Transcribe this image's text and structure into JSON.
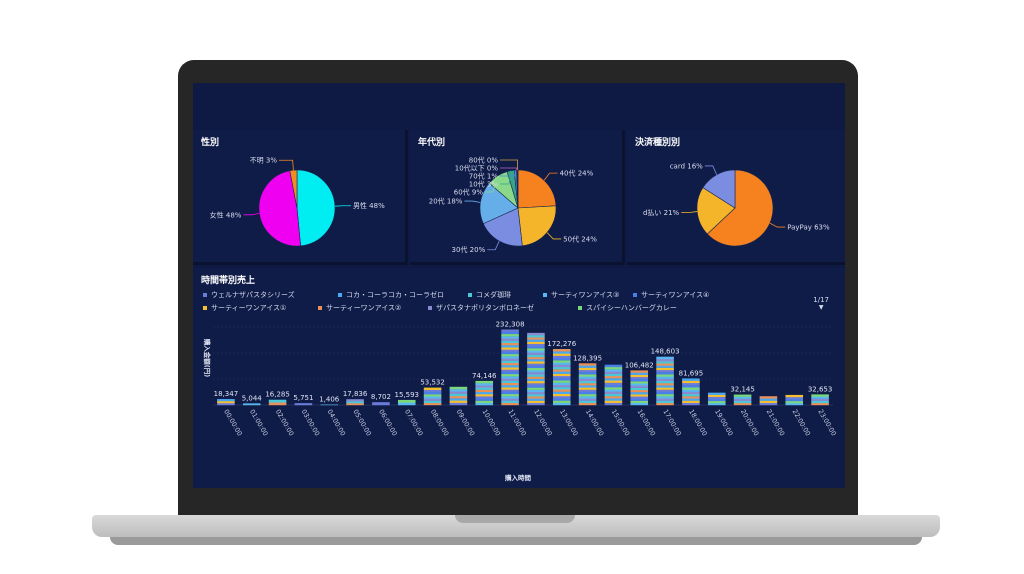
{
  "panels": {
    "gender": {
      "title": "性別",
      "chart": {
        "type": "pie",
        "slices": [
          {
            "label": "男性 48%",
            "name": "男性",
            "value": 48,
            "color": "#00eef2"
          },
          {
            "label": "女性 48%",
            "name": "女性",
            "value": 48,
            "color": "#f000f0"
          },
          {
            "label": "不明 3%",
            "name": "不明",
            "value": 3,
            "color": "#f58a1f"
          }
        ]
      }
    },
    "age": {
      "title": "年代別",
      "chart": {
        "type": "pie",
        "slices": [
          {
            "label": "40代 24%",
            "name": "40代",
            "value": 24,
            "color": "#f5821f"
          },
          {
            "label": "50代 24%",
            "name": "50代",
            "value": 24,
            "color": "#f5b52a"
          },
          {
            "label": "30代 20%",
            "name": "30代",
            "value": 20,
            "color": "#7b8de0"
          },
          {
            "label": "20代 18%",
            "name": "20代",
            "value": 18,
            "color": "#66aeea"
          },
          {
            "label": "60代 9%",
            "name": "60代",
            "value": 9,
            "color": "#8ad88a"
          },
          {
            "label": "10代 3%",
            "name": "10代",
            "value": 3,
            "color": "#36a58a"
          },
          {
            "label": "70代 1%",
            "name": "70代",
            "value": 1,
            "color": "#4a8ad8"
          },
          {
            "label": "10代以下 0%",
            "name": "10代以下",
            "value": 0.3,
            "color": "#c060c0"
          },
          {
            "label": "80代 0%",
            "name": "80代",
            "value": 0.3,
            "color": "#d0a040"
          }
        ]
      }
    },
    "payment": {
      "title": "決済種別別",
      "chart": {
        "type": "pie",
        "slices": [
          {
            "label": "PayPay 63%",
            "name": "PayPay",
            "value": 63,
            "color": "#f5821f"
          },
          {
            "label": "d払い 21%",
            "name": "d払い",
            "value": 21,
            "color": "#f5b52a"
          },
          {
            "label": "card 16%",
            "name": "card",
            "value": 16,
            "color": "#7b8de0"
          }
        ]
      }
    },
    "hourly": {
      "title": "時間帯別売上",
      "legend": [
        {
          "label": "ウェルナザパスタシリーズ",
          "color": "#6b7bd8"
        },
        {
          "label": "コカ・コーラコカ・コーラゼロ",
          "color": "#4aa8f0"
        },
        {
          "label": "コメダ珈琲",
          "color": "#4ac8d8"
        },
        {
          "label": "サーティワンアイス③",
          "color": "#5ab8f0"
        },
        {
          "label": "サーティワンアイス④",
          "color": "#4a7ee8"
        },
        {
          "label": "サーティーワンアイス①",
          "color": "#f5c030"
        },
        {
          "label": "サーティーワンアイス②",
          "color": "#e8905a"
        },
        {
          "label": "ザパスタナポリタンボロネーゼ",
          "color": "#8a8ad0"
        },
        {
          "label": "スパイシーハンバーグカレー",
          "color": "#7ad87a"
        }
      ],
      "pager": "1/17",
      "pager_arrow": "▼"
    }
  },
  "chart_data": [
    {
      "type": "pie",
      "title": "性別",
      "labels": [
        "男性",
        "女性",
        "不明"
      ],
      "values": [
        48,
        48,
        3
      ]
    },
    {
      "type": "pie",
      "title": "年代別",
      "labels": [
        "40代",
        "50代",
        "30代",
        "20代",
        "60代",
        "10代",
        "70代",
        "10代以下",
        "80代"
      ],
      "values": [
        24,
        24,
        20,
        18,
        9,
        3,
        1,
        0,
        0
      ]
    },
    {
      "type": "pie",
      "title": "決済種別別",
      "labels": [
        "PayPay",
        "d払い",
        "card"
      ],
      "values": [
        63,
        21,
        16
      ]
    },
    {
      "type": "bar",
      "stacked": true,
      "title": "時間帯別売上",
      "xlabel": "購入時間",
      "ylabel": "購入金額(円)",
      "categories": [
        "00:00:00",
        "01:00:00",
        "02:00:00",
        "03:00:00",
        "04:00:00",
        "05:00:00",
        "06:00:00",
        "07:00:00",
        "08:00:00",
        "09:00:00",
        "10:00:00",
        "11:00:00",
        "12:00:00",
        "13:00:00",
        "14:00:00",
        "15:00:00",
        "16:00:00",
        "17:00:00",
        "18:00:00",
        "19:00:00",
        "20:00:00",
        "21:00:00",
        "22:00:00",
        "23:00:00"
      ],
      "totals": [
        18347,
        5044,
        16285,
        5751,
        1406,
        17836,
        8702,
        15593,
        53532,
        56000,
        74146,
        232308,
        222000,
        172276,
        128395,
        124000,
        106482,
        148603,
        81695,
        38000,
        32145,
        27000,
        31000,
        32653
      ],
      "data_labels": [
        "18,347",
        "5,044",
        "16,285",
        "5,751",
        "1,406",
        "17,836",
        "8,702",
        "15,593",
        "53,532",
        "",
        "74,146",
        "232,308",
        "",
        "172,276",
        "128,395",
        "",
        "106,482",
        "148,603",
        "81,695",
        "",
        "32,145",
        "",
        "",
        "32,653"
      ],
      "ylim": [
        0,
        240000
      ],
      "grid": true,
      "legend": "top"
    }
  ]
}
